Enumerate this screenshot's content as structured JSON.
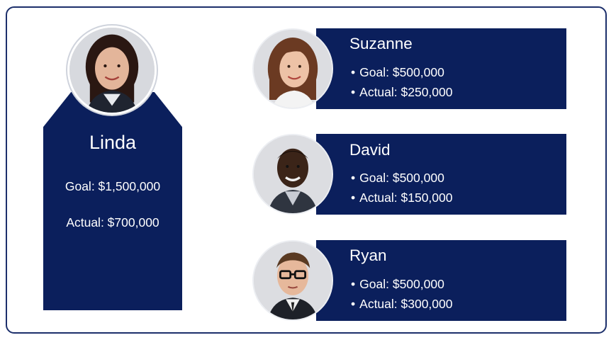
{
  "leader": {
    "name": "Linda",
    "goal": "Goal: $1,500,000",
    "actual": "Actual: $700,000"
  },
  "team": [
    {
      "name": "Suzanne",
      "goal": "Goal: $500,000",
      "actual": "Actual: $250,000"
    },
    {
      "name": "David",
      "goal": "Goal: $500,000",
      "actual": "Actual: $150,000"
    },
    {
      "name": "Ryan",
      "goal": "Goal: $500,000",
      "actual": "Actual: $300,000"
    }
  ],
  "colors": {
    "card": "#0b1f5c",
    "border": "#1c2f6b",
    "text": "#ffffff"
  },
  "bullet": "•"
}
